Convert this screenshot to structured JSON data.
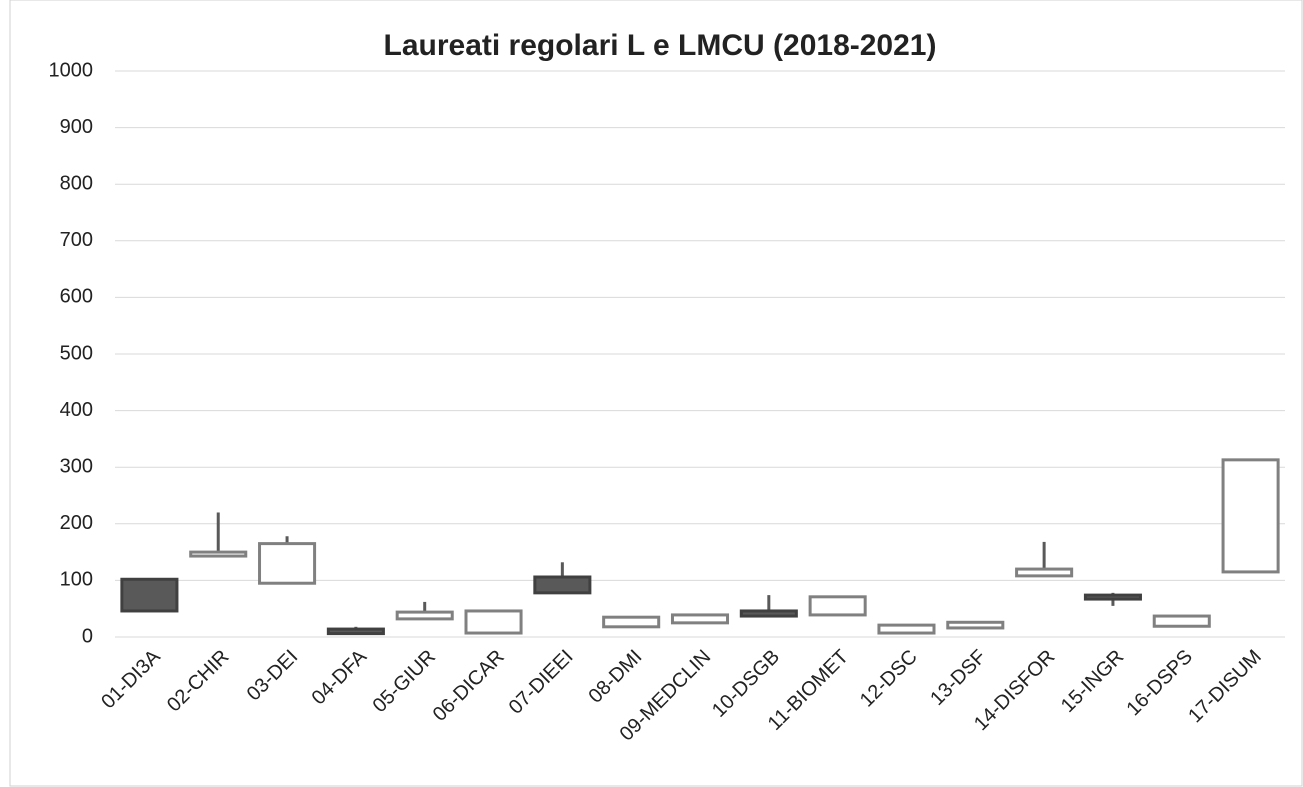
{
  "chart_data": {
    "type": "candlestick",
    "title": "Laureati regolari L e LMCU (2018-2021)",
    "categories": [
      "01-DI3A",
      "02-CHIR",
      "03-DEI",
      "04-DFA",
      "05-GIUR",
      "06-DICAR",
      "07-DIEEI",
      "08-DMI",
      "09-MEDCLIN",
      "10-DSGB",
      "11-BIOMET",
      "12-DSC",
      "13-DSF",
      "14-DISFOR",
      "15-INGR",
      "16-DSPS",
      "17-DISUM"
    ],
    "open": [
      102,
      143,
      95,
      14,
      32,
      7,
      106,
      18,
      25,
      46,
      39,
      7,
      16,
      108,
      74,
      19,
      115
    ],
    "high": [
      102,
      220,
      178,
      18,
      62,
      46,
      132,
      35,
      39,
      74,
      71,
      21,
      26,
      168,
      78,
      37,
      313
    ],
    "low": [
      46,
      143,
      95,
      6,
      32,
      7,
      78,
      18,
      25,
      37,
      39,
      7,
      16,
      108,
      55,
      19,
      115
    ],
    "close": [
      46,
      150,
      165,
      6,
      44,
      46,
      78,
      35,
      39,
      37,
      71,
      21,
      26,
      120,
      67,
      37,
      313
    ],
    "up_color": "#ffffff",
    "down_color": "#595959",
    "border_up": "#808080",
    "border_down": "#404040",
    "wick_color": "#595959",
    "ylim": [
      0,
      1000
    ],
    "yticks": [
      0,
      100,
      200,
      300,
      400,
      500,
      600,
      700,
      800,
      900,
      1000
    ],
    "grid": true
  }
}
